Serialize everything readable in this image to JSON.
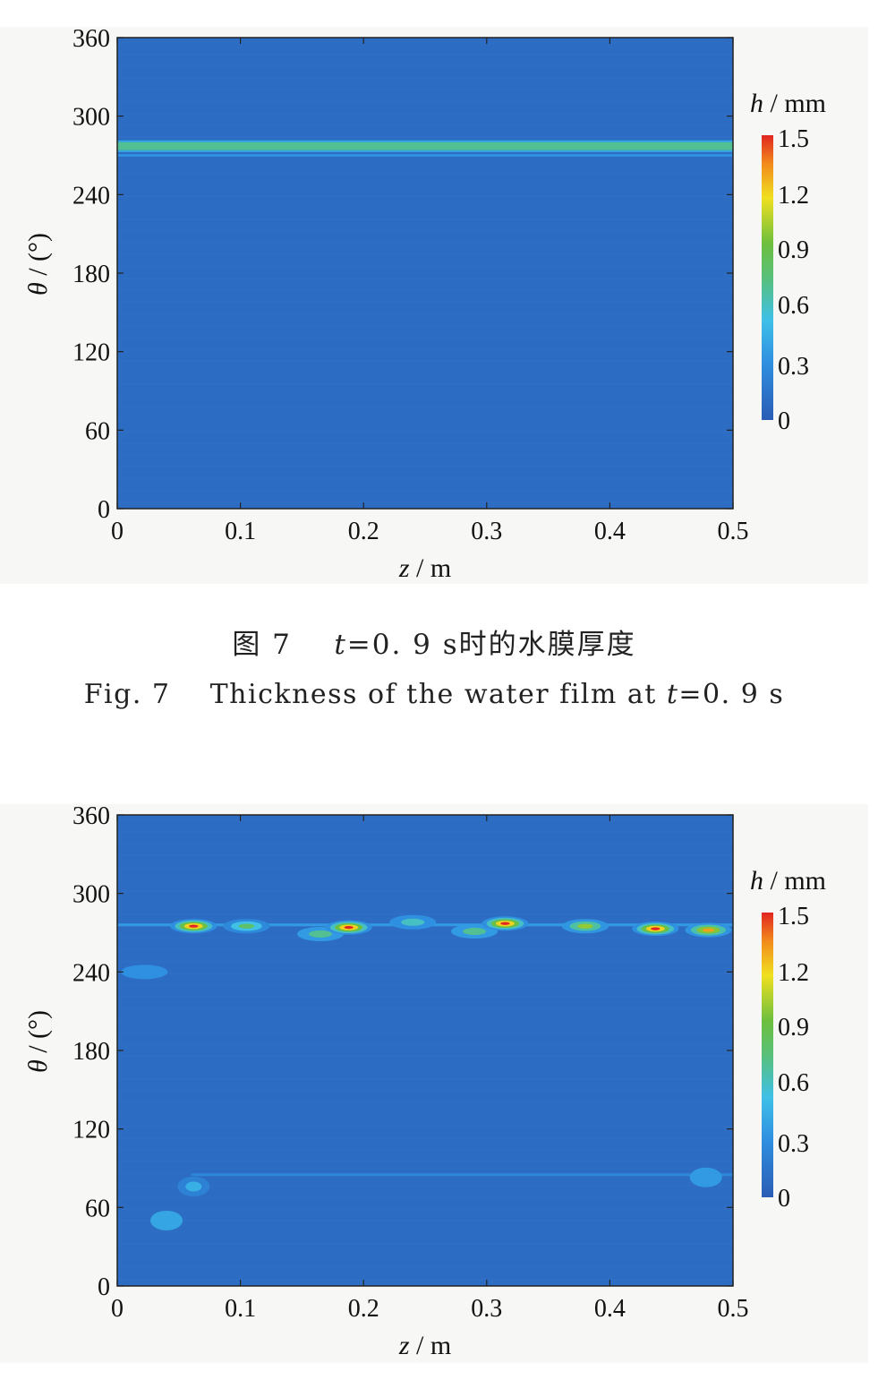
{
  "chart_data": [
    {
      "type": "heatmap",
      "panel": "a",
      "xlabel_var": "z",
      "xlabel_unit": "m",
      "ylabel_var": "θ",
      "ylabel_unit": "(°)",
      "xlim": [
        0,
        0.5
      ],
      "ylim": [
        0,
        360
      ],
      "xticks": [
        "0",
        "0.1",
        "0.2",
        "0.3",
        "0.4",
        "0.5"
      ],
      "yticks": [
        "0",
        "60",
        "120",
        "180",
        "240",
        "300",
        "360"
      ],
      "colorbar": {
        "label_var": "h",
        "label_unit": "mm",
        "range": [
          0,
          1.5
        ],
        "ticks": [
          "0",
          "0.3",
          "0.6",
          "0.9",
          "1.2",
          "1.5"
        ]
      },
      "background_h": 0.1,
      "bands": [
        {
          "theta": 277,
          "z_start": 0,
          "z_end": 0.5,
          "h": 0.7
        },
        {
          "theta": 270,
          "z_start": 0,
          "z_end": 0.5,
          "h": 0.3
        }
      ],
      "spots": []
    },
    {
      "type": "heatmap",
      "panel": "b",
      "xlabel_var": "z",
      "xlabel_unit": "m",
      "ylabel_var": "θ",
      "ylabel_unit": "(°)",
      "xlim": [
        0,
        0.5
      ],
      "ylim": [
        0,
        360
      ],
      "xticks": [
        "0",
        "0.1",
        "0.2",
        "0.3",
        "0.4",
        "0.5"
      ],
      "yticks": [
        "0",
        "60",
        "120",
        "180",
        "240",
        "300",
        "360"
      ],
      "colorbar": {
        "label_var": "h",
        "label_unit": "mm",
        "range": [
          0,
          1.5
        ],
        "ticks": [
          "0",
          "0.3",
          "0.6",
          "0.9",
          "1.2",
          "1.5"
        ]
      },
      "background_h": 0.1,
      "bands": [
        {
          "theta": 276,
          "z_start": 0,
          "z_end": 0.5,
          "h": 0.35
        },
        {
          "theta": 85,
          "z_start": 0.06,
          "z_end": 0.5,
          "h": 0.25
        }
      ],
      "spots": [
        {
          "z": 0.062,
          "theta": 275,
          "h": 1.5
        },
        {
          "z": 0.105,
          "theta": 275,
          "h": 0.8
        },
        {
          "z": 0.165,
          "theta": 269,
          "h": 0.7
        },
        {
          "z": 0.188,
          "theta": 274,
          "h": 1.5
        },
        {
          "z": 0.24,
          "theta": 278,
          "h": 0.6
        },
        {
          "z": 0.29,
          "theta": 271,
          "h": 0.7
        },
        {
          "z": 0.315,
          "theta": 277,
          "h": 1.5
        },
        {
          "z": 0.38,
          "theta": 275,
          "h": 1.0
        },
        {
          "z": 0.437,
          "theta": 273,
          "h": 1.5
        },
        {
          "z": 0.48,
          "theta": 272,
          "h": 1.3
        },
        {
          "z": 0.062,
          "theta": 76,
          "h": 0.45
        },
        {
          "z": 0.04,
          "theta": 50,
          "h": 0.4
        },
        {
          "z": 0.022,
          "theta": 240,
          "h": 0.3
        },
        {
          "z": 0.478,
          "theta": 83,
          "h": 0.35
        }
      ]
    }
  ],
  "captions": {
    "cn": {
      "fig": "图 7",
      "t_var": "t",
      "rest": "=0. 9  s时的水膜厚度"
    },
    "en": {
      "fig": "Fig. 7",
      "text": "Thickness of the water film at ",
      "t_var": "t",
      "rest": "=0. 9  s"
    }
  }
}
